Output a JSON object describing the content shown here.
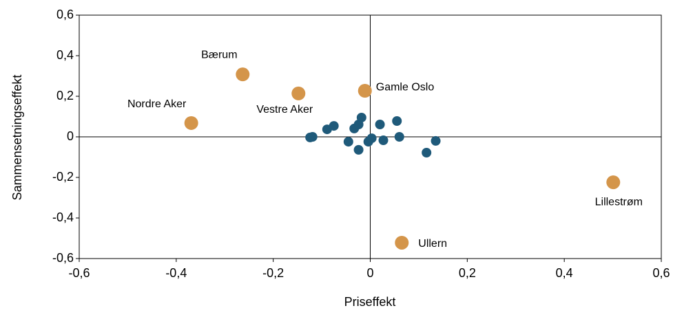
{
  "chart_data": {
    "type": "scatter",
    "x_label": "Priseffekt",
    "y_label": "Sammensetningseffekt",
    "xlim": [
      -0.6,
      0.6
    ],
    "xticks": [
      {
        "value": -0.6,
        "label": "-0,6"
      },
      {
        "value": -0.4,
        "label": "-0,4"
      },
      {
        "value": -0.2,
        "label": "-0,2"
      },
      0,
      {
        "value": 0.2,
        "label": "0,2"
      },
      {
        "value": 0.4,
        "label": "0,4"
      },
      {
        "value": 0.6,
        "label": "0,6"
      }
    ],
    "ylim": [
      -0.6,
      0.6
    ],
    "yticks": [
      {
        "value": -0.6,
        "label": "-0,6"
      },
      {
        "value": -0.4,
        "label": "-0,4"
      },
      {
        "value": -0.2,
        "label": "-0,2"
      },
      0,
      {
        "value": 0.2,
        "label": "0,2"
      },
      {
        "value": 0.4,
        "label": "0,4"
      },
      {
        "value": 0.6,
        "label": "0,6"
      }
    ],
    "series": [
      {
        "color": "#1f5a7a",
        "x": [
          -0.124,
          -0.119,
          -0.089,
          -0.075,
          -0.045,
          -0.033,
          -0.024,
          -0.018,
          -0.024,
          -0.004,
          0.003,
          0.02,
          0.027,
          0.055,
          0.06,
          0.116,
          0.135
        ],
        "values": [
          -0.003,
          0,
          0.037,
          0.054,
          -0.024,
          0.041,
          0.061,
          0.095,
          -0.064,
          -0.024,
          -0.007,
          0.061,
          -0.017,
          0.078,
          0,
          -0.078,
          -0.02
        ]
      },
      {
        "color": "#d4954a",
        "labels": [
          "Nordre Aker",
          "Bærum",
          "Vestre Aker",
          "Gamle Oslo",
          "Lillestrøm",
          "Ullern"
        ],
        "x": [
          -0.369,
          -0.263,
          -0.148,
          -0.011,
          0.501,
          0.065
        ],
        "values": [
          0.068,
          0.308,
          0.214,
          0.227,
          -0.224,
          -0.522
        ]
      }
    ]
  }
}
